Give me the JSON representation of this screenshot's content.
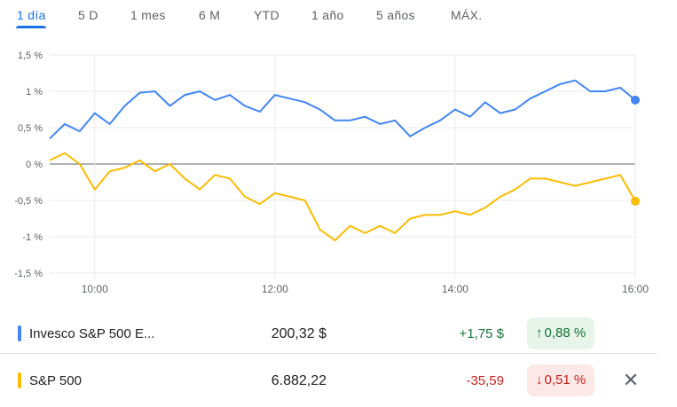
{
  "tabs": [
    {
      "label": "1 día",
      "active": true
    },
    {
      "label": "5 D",
      "active": false
    },
    {
      "label": "1 mes",
      "active": false
    },
    {
      "label": "6 M",
      "active": false
    },
    {
      "label": "YTD",
      "active": false
    },
    {
      "label": "1 año",
      "active": false
    },
    {
      "label": "5 años",
      "active": false
    },
    {
      "label": "MÁX.",
      "active": false
    }
  ],
  "chart_data": {
    "type": "line",
    "title": "",
    "xlabel": "",
    "ylabel": "",
    "grid": true,
    "x_ticks": [
      "10:00",
      "12:00",
      "14:00",
      "16:00"
    ],
    "y_ticks": [
      "1,5 %",
      "1 %",
      "0,5 %",
      "0 %",
      "-0,5 %",
      "-1 %",
      "-1,5 %"
    ],
    "ylim": [
      -1.5,
      1.5
    ],
    "xlim": [
      "09:30",
      "16:00"
    ],
    "series": [
      {
        "color": "#4285f4",
        "x": [
          "09:30",
          "09:40",
          "09:50",
          "10:00",
          "10:10",
          "10:20",
          "10:30",
          "10:40",
          "10:50",
          "11:00",
          "11:10",
          "11:20",
          "11:30",
          "11:40",
          "11:50",
          "12:00",
          "12:10",
          "12:20",
          "12:30",
          "12:40",
          "12:50",
          "13:00",
          "13:10",
          "13:20",
          "13:30",
          "13:40",
          "13:50",
          "14:00",
          "14:10",
          "14:20",
          "14:30",
          "14:40",
          "14:50",
          "15:00",
          "15:10",
          "15:20",
          "15:30",
          "15:40",
          "15:50",
          "16:00"
        ],
        "values": [
          0.35,
          0.55,
          0.45,
          0.7,
          0.55,
          0.8,
          0.98,
          1.0,
          0.8,
          0.95,
          1.0,
          0.88,
          0.95,
          0.8,
          0.72,
          0.95,
          0.9,
          0.85,
          0.75,
          0.6,
          0.6,
          0.65,
          0.55,
          0.6,
          0.38,
          0.5,
          0.6,
          0.75,
          0.65,
          0.85,
          0.7,
          0.75,
          0.9,
          1.0,
          1.1,
          1.15,
          1.0,
          1.0,
          1.05,
          0.88
        ]
      },
      {
        "color": "#fbbc04",
        "x": [
          "09:30",
          "09:40",
          "09:50",
          "10:00",
          "10:10",
          "10:20",
          "10:30",
          "10:40",
          "10:50",
          "11:00",
          "11:10",
          "11:20",
          "11:30",
          "11:40",
          "11:50",
          "12:00",
          "12:10",
          "12:20",
          "12:30",
          "12:40",
          "12:50",
          "13:00",
          "13:10",
          "13:20",
          "13:30",
          "13:40",
          "13:50",
          "14:00",
          "14:10",
          "14:20",
          "14:30",
          "14:40",
          "14:50",
          "15:00",
          "15:10",
          "15:20",
          "15:30",
          "15:40",
          "15:50",
          "16:00"
        ],
        "values": [
          0.05,
          0.15,
          0.0,
          -0.35,
          -0.1,
          -0.05,
          0.05,
          -0.1,
          0.0,
          -0.2,
          -0.35,
          -0.15,
          -0.2,
          -0.45,
          -0.55,
          -0.4,
          -0.45,
          -0.5,
          -0.9,
          -1.05,
          -0.85,
          -0.95,
          -0.85,
          -0.95,
          -0.75,
          -0.7,
          -0.7,
          -0.65,
          -0.7,
          -0.6,
          -0.45,
          -0.35,
          -0.2,
          -0.2,
          -0.25,
          -0.3,
          -0.25,
          -0.2,
          -0.15,
          -0.51
        ]
      }
    ]
  },
  "rows": [
    {
      "name": "Invesco S&P 500 E...",
      "color": "#4285f4",
      "price": "200,32 $",
      "change": "+1,75 $",
      "pct": "0,88 %",
      "direction": "up",
      "arrow": "↑"
    },
    {
      "name": "S&P 500",
      "color": "#fbbc04",
      "price": "6.882,22",
      "change": "-35,59",
      "pct": "0,51 %",
      "direction": "down",
      "arrow": "↓",
      "close": "✕"
    }
  ]
}
